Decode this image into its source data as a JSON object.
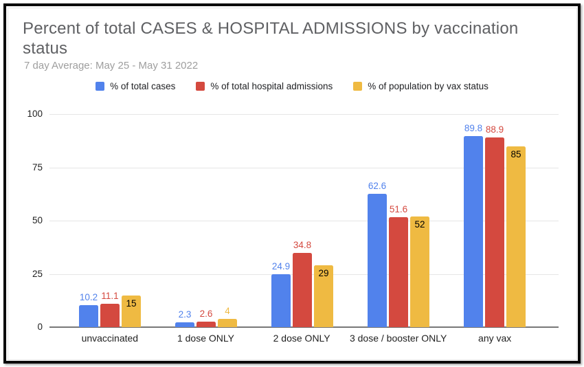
{
  "chart_data": {
    "type": "bar",
    "title": "Percent of total CASES & HOSPITAL ADMISSIONS by vaccination status",
    "subtitle": "7 day Average: May 25 - May 31 2022",
    "categories": [
      "unvaccinated",
      "1 dose ONLY",
      "2 dose ONLY",
      "3 dose / booster ONLY",
      "any vax"
    ],
    "series": [
      {
        "key": "cases",
        "name": "% of total cases",
        "color": "#5182EC",
        "values": [
          10.2,
          2.3,
          24.9,
          62.6,
          89.8
        ]
      },
      {
        "key": "hospital-admissions",
        "name": "% of total hospital admissions",
        "color": "#D4493F",
        "values": [
          11.1,
          2.6,
          34.8,
          51.6,
          88.9
        ]
      },
      {
        "key": "population",
        "name": "% of population by vax status",
        "color": "#EFBA42",
        "values": [
          15,
          4,
          29,
          52,
          85
        ],
        "inside_label_min": 10,
        "inside_label_color": "#000000"
      }
    ],
    "ylim": [
      0,
      100
    ],
    "yticks": [
      0,
      25,
      50,
      75,
      100
    ],
    "legend_position": "top",
    "grid": true
  },
  "style": {
    "grid_color": "#e6e6e6",
    "axis_line_color": "#777777",
    "title_color": "#5f6063",
    "subtitle_color": "#9e9e9e",
    "tick_label_color": "#1f1f1f"
  }
}
